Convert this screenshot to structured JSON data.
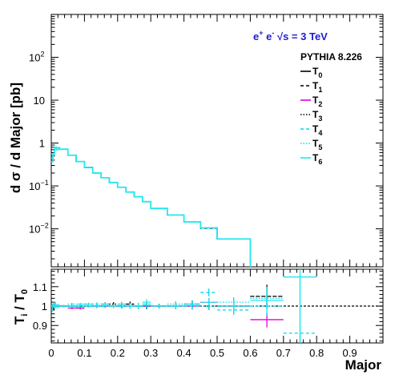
{
  "chart_data": [
    {
      "type": "line",
      "title": "e⁺ e⁻ √s = 3 TeV",
      "title_parts": [
        "e",
        "+",
        " e",
        "-",
        " √s = 3 TeV"
      ],
      "generator": "PYTHIA 8.226",
      "ylabel": "d σ / d Major [pb]",
      "ylog": true,
      "xlim": [
        0,
        1
      ],
      "ylim": [
        0.0013,
        1000
      ],
      "grid": false,
      "legend_position": "top-right",
      "y_ticks": [
        {
          "value": 0.01,
          "base": "10",
          "exp": "−2"
        },
        {
          "value": 0.1,
          "base": "10",
          "exp": "−1"
        },
        {
          "value": 1,
          "base": "1",
          "exp": ""
        },
        {
          "value": 10,
          "base": "10",
          "exp": ""
        },
        {
          "value": 100,
          "base": "10",
          "exp": "2"
        }
      ],
      "bin_edges": [
        0,
        0.005,
        0.01,
        0.015,
        0.02,
        0.025,
        0.05,
        0.075,
        0.1,
        0.125,
        0.15,
        0.175,
        0.2,
        0.225,
        0.25,
        0.275,
        0.3,
        0.35,
        0.4,
        0.45,
        0.5,
        0.6,
        0.7,
        0.8,
        0.9,
        1.0
      ],
      "series": [
        {
          "name": "T",
          "sub": "0",
          "color": "#000000",
          "dash": "solid",
          "values": [
            0.37,
            0.55,
            0.8,
            0.7,
            0.78,
            0.72,
            0.52,
            0.37,
            0.27,
            0.2,
            0.155,
            0.12,
            0.093,
            0.072,
            0.056,
            0.043,
            0.03,
            0.021,
            0.0145,
            0.0105,
            0.0058,
            null,
            null,
            null,
            null
          ]
        },
        {
          "name": "T",
          "sub": "1",
          "color": "#000000",
          "dash": "4,3",
          "values": [
            0.37,
            0.55,
            0.8,
            0.7,
            0.78,
            0.72,
            0.52,
            0.37,
            0.27,
            0.2,
            0.155,
            0.12,
            0.093,
            0.072,
            0.056,
            0.043,
            0.03,
            0.021,
            0.0145,
            0.0102,
            0.0058,
            null,
            null,
            null,
            null
          ]
        },
        {
          "name": "T",
          "sub": "2",
          "color": "#e000e0",
          "dash": "solid",
          "values": [
            0.37,
            0.55,
            0.8,
            0.7,
            0.78,
            0.72,
            0.52,
            0.37,
            0.27,
            0.2,
            0.155,
            0.12,
            0.093,
            0.072,
            0.056,
            0.043,
            0.03,
            0.021,
            0.0145,
            0.0105,
            0.0058,
            null,
            null,
            null,
            null
          ]
        },
        {
          "name": "T",
          "sub": "3",
          "color": "#000000",
          "dash": "1.5,2",
          "values": [
            0.37,
            0.55,
            0.8,
            0.7,
            0.78,
            0.72,
            0.52,
            0.37,
            0.27,
            0.2,
            0.155,
            0.12,
            0.093,
            0.072,
            0.056,
            0.043,
            0.03,
            0.021,
            0.0145,
            0.0105,
            0.0058,
            null,
            null,
            null,
            null
          ]
        },
        {
          "name": "T",
          "sub": "4",
          "color": "#00d8e8",
          "dash": "4,3",
          "values": [
            0.37,
            0.55,
            0.8,
            0.7,
            0.78,
            0.72,
            0.52,
            0.37,
            0.27,
            0.2,
            0.155,
            0.12,
            0.093,
            0.072,
            0.056,
            0.043,
            0.03,
            0.021,
            0.0145,
            0.0105,
            0.0058,
            null,
            null,
            null,
            null
          ]
        },
        {
          "name": "T",
          "sub": "5",
          "color": "#00d8e8",
          "dash": "1.5,2",
          "values": [
            0.37,
            0.55,
            0.8,
            0.7,
            0.78,
            0.72,
            0.52,
            0.37,
            0.27,
            0.2,
            0.155,
            0.12,
            0.093,
            0.072,
            0.056,
            0.043,
            0.03,
            0.021,
            0.0145,
            0.0105,
            0.0058,
            null,
            null,
            null,
            null
          ]
        },
        {
          "name": "T",
          "sub": "6",
          "color": "#22e8f0",
          "dash": "solid",
          "values": [
            0.37,
            0.55,
            0.8,
            0.7,
            0.78,
            0.72,
            0.52,
            0.37,
            0.27,
            0.2,
            0.155,
            0.12,
            0.093,
            0.072,
            0.056,
            0.043,
            0.03,
            0.021,
            0.0145,
            0.0105,
            0.0058,
            null,
            null,
            null,
            null
          ]
        }
      ]
    },
    {
      "type": "scatter",
      "xlabel": "Major",
      "ylabel": "T",
      "ylabel_sub": "i",
      "ylabel_den": " / T",
      "ylabel_den_sub": "0",
      "xlim": [
        0,
        1
      ],
      "ylim": [
        0.81,
        1.19
      ],
      "reference_line": 1.0,
      "y_ticks": [
        "0.9",
        "1",
        "1.1"
      ],
      "x_ticks": [
        "0",
        "0.1",
        "0.2",
        "0.3",
        "0.4",
        "0.5",
        "0.6",
        "0.7",
        "0.8",
        "0.9"
      ],
      "bin_centers": [
        0.0025,
        0.0075,
        0.0125,
        0.0175,
        0.0225,
        0.0375,
        0.0625,
        0.0875,
        0.1125,
        0.1375,
        0.1625,
        0.1875,
        0.2125,
        0.2375,
        0.2625,
        0.2875,
        0.325,
        0.375,
        0.425,
        0.475,
        0.55,
        0.65,
        0.75
      ],
      "bin_half_widths": [
        0.0025,
        0.0025,
        0.0025,
        0.0025,
        0.0025,
        0.0125,
        0.0125,
        0.0125,
        0.0125,
        0.0125,
        0.0125,
        0.0125,
        0.0125,
        0.0125,
        0.0125,
        0.0125,
        0.025,
        0.025,
        0.025,
        0.025,
        0.05,
        0.05,
        0.05
      ],
      "series": [
        {
          "name": "T",
          "sub": "1",
          "color": "#000000",
          "dash": "4,3",
          "values": [
            1.0,
            0.99,
            1.0,
            1.0,
            1.0,
            1.0,
            1.0,
            0.99,
            1.0,
            1.0,
            1.01,
            1.0,
            1.0,
            1.01,
            1.0,
            1.0,
            1.0,
            1.0,
            1.01,
            1.02,
            1.0,
            1.05,
            null
          ],
          "errors": [
            0.01,
            0.01,
            0.01,
            0.01,
            0.01,
            0.005,
            0.006,
            0.007,
            0.008,
            0.009,
            0.01,
            0.01,
            0.012,
            0.013,
            0.015,
            0.016,
            0.012,
            0.015,
            0.018,
            0.02,
            0.025,
            0.06,
            null
          ]
        },
        {
          "name": "T",
          "sub": "2",
          "color": "#e000e0",
          "dash": "solid",
          "values": [
            1.0,
            1.0,
            1.0,
            1.0,
            1.0,
            1.0,
            0.99,
            0.99,
            1.0,
            1.0,
            1.0,
            1.0,
            1.01,
            1.0,
            1.0,
            1.0,
            1.0,
            1.0,
            1.0,
            1.02,
            1.0,
            0.93,
            null
          ],
          "errors": [
            0.01,
            0.01,
            0.01,
            0.01,
            0.01,
            0.005,
            0.006,
            0.007,
            0.008,
            0.009,
            0.01,
            0.01,
            0.012,
            0.013,
            0.015,
            0.016,
            0.012,
            0.015,
            0.018,
            0.02,
            0.025,
            0.04,
            null
          ]
        },
        {
          "name": "T",
          "sub": "3",
          "color": "#000000",
          "dash": "1.5,2",
          "values": [
            1.0,
            1.0,
            1.0,
            1.0,
            1.0,
            1.0,
            1.0,
            1.0,
            1.0,
            1.0,
            1.0,
            1.01,
            1.0,
            1.0,
            1.0,
            1.0,
            1.0,
            1.0,
            1.01,
            1.0,
            1.0,
            1.05,
            null
          ],
          "errors": [
            0.01,
            0.01,
            0.01,
            0.01,
            0.01,
            0.005,
            0.006,
            0.007,
            0.008,
            0.009,
            0.01,
            0.01,
            0.012,
            0.013,
            0.015,
            0.016,
            0.012,
            0.015,
            0.018,
            0.02,
            0.025,
            0.05,
            null
          ]
        },
        {
          "name": "T",
          "sub": "4",
          "color": "#00d8e8",
          "dash": "4,3",
          "values": [
            0.98,
            1.01,
            1.0,
            1.0,
            1.0,
            1.0,
            1.0,
            1.0,
            1.01,
            1.0,
            1.0,
            1.0,
            1.0,
            1.0,
            1.0,
            1.01,
            1.0,
            1.0,
            1.0,
            1.07,
            0.98,
            1.0,
            0.86
          ],
          "errors": [
            0.01,
            0.01,
            0.01,
            0.01,
            0.01,
            0.005,
            0.006,
            0.007,
            0.008,
            0.009,
            0.01,
            0.01,
            0.012,
            0.013,
            0.015,
            0.016,
            0.012,
            0.015,
            0.018,
            0.02,
            0.025,
            0.05,
            0.3
          ]
        },
        {
          "name": "T",
          "sub": "5",
          "color": "#00d8e8",
          "dash": "1.5,2",
          "values": [
            1.0,
            1.0,
            1.01,
            1.0,
            1.0,
            1.0,
            1.01,
            1.0,
            1.0,
            1.01,
            1.0,
            1.0,
            1.0,
            1.0,
            1.0,
            1.0,
            1.0,
            1.01,
            1.01,
            1.0,
            1.02,
            1.04,
            null
          ],
          "errors": [
            0.01,
            0.01,
            0.01,
            0.01,
            0.01,
            0.005,
            0.006,
            0.007,
            0.008,
            0.009,
            0.01,
            0.01,
            0.012,
            0.013,
            0.015,
            0.016,
            0.012,
            0.015,
            0.018,
            0.02,
            0.025,
            0.05,
            null
          ]
        },
        {
          "name": "T",
          "sub": "6",
          "color": "#22e8f0",
          "dash": "solid",
          "values": [
            1.0,
            1.0,
            1.0,
            1.0,
            1.0,
            1.0,
            1.0,
            1.01,
            1.0,
            1.0,
            1.01,
            1.0,
            1.01,
            1.0,
            1.0,
            1.02,
            1.0,
            1.0,
            1.01,
            1.02,
            1.0,
            1.03,
            1.15
          ],
          "errors": [
            0.01,
            0.01,
            0.01,
            0.01,
            0.01,
            0.005,
            0.006,
            0.007,
            0.008,
            0.009,
            0.01,
            0.01,
            0.012,
            0.013,
            0.015,
            0.016,
            0.012,
            0.015,
            0.018,
            0.02,
            0.025,
            0.07,
            0.3
          ]
        }
      ]
    }
  ]
}
